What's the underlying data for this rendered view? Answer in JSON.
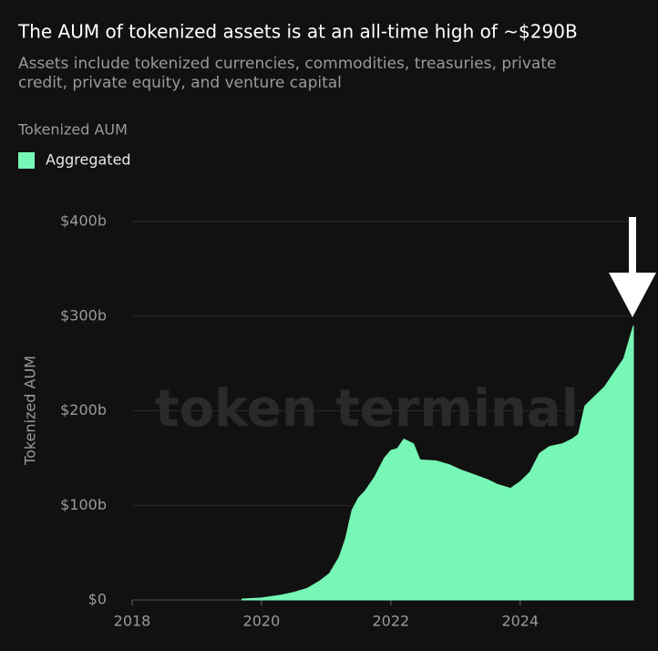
{
  "chart_data": {
    "type": "area",
    "title": "The AUM of tokenized assets is at an all-time high of ~$290B",
    "subtitle": "Assets include tokenized currencies, commodities, treasuries, private credit, private equity, and venture capital",
    "legend_title": "Tokenized AUM",
    "y_label": "Tokenized AUM",
    "watermark": "token terminal.",
    "x": [
      2019.7,
      2020.0,
      2020.3,
      2020.5,
      2020.7,
      2020.9,
      2021.05,
      2021.2,
      2021.3,
      2021.4,
      2021.5,
      2021.6,
      2021.75,
      2021.9,
      2022.0,
      2022.1,
      2022.2,
      2022.35,
      2022.45,
      2022.7,
      2022.9,
      2023.1,
      2023.3,
      2023.5,
      2023.65,
      2023.85,
      2024.0,
      2024.15,
      2024.3,
      2024.45,
      2024.65,
      2024.8,
      2024.9,
      2025.0,
      2025.15,
      2025.3,
      2025.45,
      2025.6,
      2025.75
    ],
    "series": [
      {
        "name": "Aggregated",
        "color": "#77f7b5",
        "values": [
          1,
          2,
          5,
          8,
          12,
          20,
          28,
          45,
          65,
          95,
          108,
          115,
          130,
          150,
          158,
          160,
          170,
          165,
          148,
          147,
          143,
          137,
          132,
          127,
          122,
          118,
          125,
          135,
          155,
          162,
          165,
          170,
          175,
          205,
          215,
          225,
          240,
          255,
          290
        ]
      }
    ],
    "xlim": [
      2018,
      2025.75
    ],
    "xticks": [
      2018,
      2020,
      2022,
      2024
    ],
    "ylim": [
      0,
      400
    ],
    "yticks": [
      {
        "value": 0,
        "label": "$0"
      },
      {
        "value": 100,
        "label": "$100b"
      },
      {
        "value": 200,
        "label": "$200b"
      },
      {
        "value": 300,
        "label": "$300b"
      },
      {
        "value": 400,
        "label": "$400b"
      }
    ],
    "grid": true
  }
}
